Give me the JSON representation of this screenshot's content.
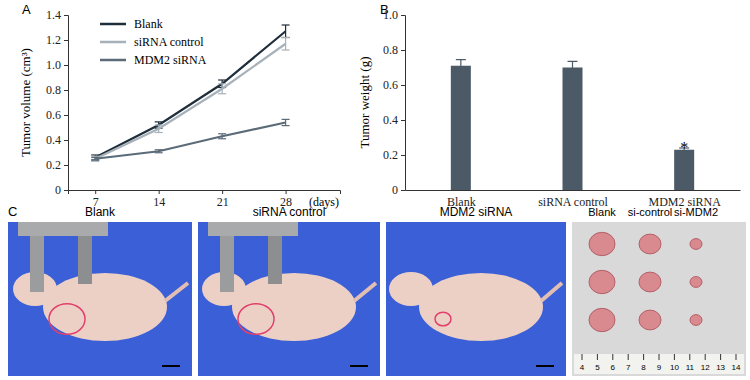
{
  "chart_data": [
    {
      "type": "line",
      "x_label": "(days)",
      "y_label": "Tumor volume (cm³)",
      "x": [
        7,
        14,
        21,
        28
      ],
      "xlim": [
        4,
        34
      ],
      "xticks": [
        7,
        14,
        21,
        28
      ],
      "ylim": [
        0,
        1.4
      ],
      "yticks": [
        0,
        0.2,
        0.4,
        0.6,
        0.8,
        {
          "value": 1,
          "label": "1.0"
        },
        1.2,
        1.4
      ],
      "legend": "upper-left",
      "series": [
        {
          "name": "Blank",
          "color": "#1f2e3b",
          "values": [
            0.26,
            0.52,
            0.85,
            1.27
          ],
          "errors": [
            0.02,
            0.025,
            0.03,
            0.05
          ]
        },
        {
          "name": "siRNA control",
          "color": "#a7b1b9",
          "values": [
            0.25,
            0.49,
            0.81,
            1.17
          ],
          "errors": [
            0.02,
            0.03,
            0.04,
            0.05
          ]
        },
        {
          "name": "MDM2 siRNA",
          "color": "#5b6b78",
          "values": [
            0.25,
            0.31,
            0.43,
            0.54
          ],
          "errors": [
            0.01,
            0.012,
            0.02,
            0.025
          ]
        }
      ]
    },
    {
      "type": "bar",
      "y_label": "Tumor weight (g)",
      "categories": [
        "Blank",
        "siRNA control",
        "MDM2 siRNA"
      ],
      "values": [
        0.71,
        0.7,
        0.23
      ],
      "errors": [
        0.035,
        0.035,
        0.01
      ],
      "color": "#4b5a66",
      "ylim": [
        0,
        1
      ],
      "yticks": [
        0,
        0.2,
        0.4,
        0.6,
        0.8,
        {
          "value": 1,
          "label": "1.0"
        }
      ],
      "annotations": [
        {
          "text": "*",
          "x": "MDM2 siRNA",
          "y": 0.26
        }
      ]
    }
  ],
  "figure": {
    "panel_labels": [
      "A",
      "B",
      "C"
    ],
    "photos": [
      {
        "caption": "Blank"
      },
      {
        "caption": "siRNA control"
      },
      {
        "caption": "MDM2 siRNA"
      }
    ],
    "tumor_photo": {
      "columns": [
        "Blank",
        "si-control",
        "si-MDM2"
      ],
      "ruler": [
        4,
        5,
        6,
        7,
        8,
        9,
        10,
        11,
        12,
        13,
        14
      ]
    }
  }
}
